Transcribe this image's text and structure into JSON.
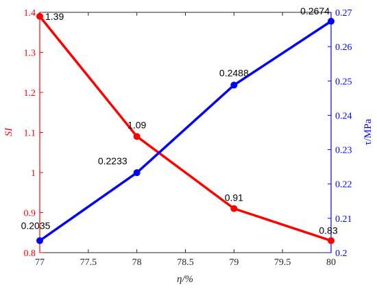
{
  "chart_data": {
    "type": "line",
    "x": [
      77,
      78,
      79,
      80
    ],
    "xlabel": "η/%",
    "xlim": [
      77,
      80
    ],
    "x_ticks": [
      "77",
      "77.5",
      "78",
      "78.5",
      "79",
      "79.5",
      "80"
    ],
    "series": [
      {
        "name": "SI",
        "axis": "left",
        "color": "#ff0000",
        "values": [
          1.39,
          1.09,
          0.91,
          0.83
        ],
        "labels": [
          "1.39",
          "1.09",
          "0.91",
          "0.83"
        ]
      },
      {
        "name": "τ",
        "axis": "right",
        "color": "#0000ff",
        "values": [
          0.2035,
          0.2233,
          0.2488,
          0.2674
        ],
        "labels": [
          "0.2035",
          "0.2233",
          "0.2488",
          "0.2674"
        ]
      }
    ],
    "left_axis": {
      "label": "SI",
      "color": "#ff0000",
      "ylim": [
        0.8,
        1.4
      ],
      "ticks": [
        "0.8",
        "0.9",
        "1",
        "1.1",
        "1.2",
        "1.3",
        "1.4"
      ]
    },
    "right_axis": {
      "label": "τ/MPa",
      "color": "#0000ff",
      "ylim": [
        0.2,
        0.27
      ],
      "ticks": [
        "0.2",
        "0.21",
        "0.22",
        "0.23",
        "0.24",
        "0.25",
        "0.26",
        "0.27"
      ]
    },
    "grid": false
  }
}
